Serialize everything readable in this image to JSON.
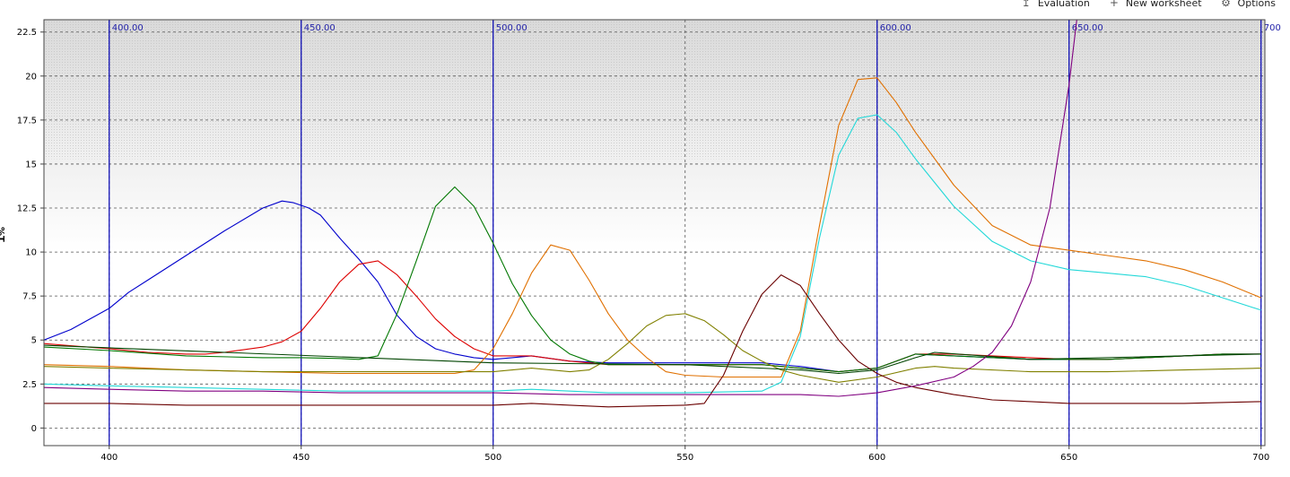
{
  "toolbar": {
    "items": [
      {
        "label": "Evaluation",
        "icon": "evaluation-icon"
      },
      {
        "label": "New worksheet",
        "icon": "plus-icon"
      },
      {
        "label": "Options",
        "icon": "gear-icon"
      }
    ]
  },
  "chart_data": {
    "type": "line",
    "title": "",
    "xlabel": "",
    "ylabel": "%T",
    "xlim": [
      383,
      701
    ],
    "ylim": [
      -1,
      23.2
    ],
    "grid": true,
    "xticks": [
      "400",
      "450",
      "500",
      "550",
      "600",
      "650",
      "700"
    ],
    "yticks": [
      "0",
      "2.5",
      "5",
      "7.5",
      "10",
      "12.5",
      "15",
      "17.5",
      "20",
      "22.5"
    ],
    "markers": [
      {
        "x": 400,
        "label": "400.00"
      },
      {
        "x": 450,
        "label": "450.00"
      },
      {
        "x": 500,
        "label": "500.00"
      },
      {
        "x": 600,
        "label": "600.00"
      },
      {
        "x": 650,
        "label": "650.00"
      },
      {
        "x": 700,
        "label": "700"
      }
    ],
    "colors": {
      "plot_background": "#ffffff",
      "noise_band": "#d6d6d6",
      "grid": "#555555",
      "marker": "#0000b4"
    },
    "series": [
      {
        "color": "#0000cc",
        "x": [
          383,
          390,
          400,
          405,
          410,
          420,
          430,
          440,
          445,
          448,
          452,
          455,
          460,
          465,
          470,
          475,
          480,
          485,
          490,
          495,
          500,
          505,
          510,
          520,
          530,
          550,
          570,
          580,
          590,
          600,
          610,
          620,
          640,
          650,
          660,
          670,
          680,
          690,
          700
        ],
        "y": [
          5,
          5.6,
          6.8,
          7.7,
          8.4,
          9.8,
          11.2,
          12.5,
          12.9,
          12.8,
          12.5,
          12.1,
          10.8,
          9.6,
          8.3,
          6.4,
          5.2,
          4.5,
          4.2,
          4,
          3.9,
          4,
          4.1,
          3.8,
          3.7,
          3.7,
          3.7,
          3.5,
          3.2,
          3.4,
          4.2,
          4.1,
          3.9,
          3.9,
          3.9,
          4,
          4.1,
          4.2,
          4.2
        ]
      },
      {
        "color": "#dd0000",
        "x": [
          383,
          400,
          410,
          420,
          425,
          430,
          440,
          445,
          450,
          455,
          460,
          465,
          470,
          475,
          480,
          485,
          490,
          495,
          500,
          505,
          510,
          520,
          530,
          550,
          570,
          580,
          590,
          600,
          610,
          620,
          640,
          650,
          660,
          670,
          680,
          690,
          700
        ],
        "y": [
          4.8,
          4.5,
          4.3,
          4.2,
          4.2,
          4.3,
          4.6,
          4.9,
          5.5,
          6.8,
          8.3,
          9.3,
          9.5,
          8.7,
          7.5,
          6.2,
          5.2,
          4.5,
          4.1,
          4.1,
          4.1,
          3.8,
          3.6,
          3.6,
          3.6,
          3.4,
          3.2,
          3.4,
          4.2,
          4.2,
          4,
          3.9,
          3.9,
          4,
          4.1,
          4.2,
          4.2
        ]
      },
      {
        "color": "#007700",
        "x": [
          383,
          400,
          420,
          440,
          450,
          460,
          465,
          470,
          475,
          480,
          485,
          490,
          495,
          500,
          505,
          510,
          515,
          520,
          525,
          530,
          550,
          570,
          580,
          590,
          600,
          610,
          620,
          640,
          650,
          660,
          670,
          680,
          690,
          700
        ],
        "y": [
          4.6,
          4.4,
          4.1,
          4,
          4,
          3.95,
          3.9,
          4.1,
          6.5,
          9.5,
          12.6,
          13.7,
          12.6,
          10.5,
          8.2,
          6.4,
          5,
          4.2,
          3.8,
          3.6,
          3.6,
          3.6,
          3.4,
          3.2,
          3.4,
          4.2,
          4.1,
          3.9,
          3.9,
          3.9,
          4,
          4.1,
          4.2,
          4.2
        ]
      },
      {
        "color": "#e07000",
        "x": [
          383,
          400,
          420,
          440,
          460,
          480,
          490,
          495,
          500,
          505,
          510,
          515,
          520,
          525,
          530,
          535,
          540,
          545,
          550,
          560,
          570,
          575,
          580,
          585,
          590,
          595,
          600,
          605,
          610,
          620,
          630,
          640,
          650,
          660,
          670,
          680,
          690,
          700
        ],
        "y": [
          3.6,
          3.5,
          3.3,
          3.2,
          3.1,
          3.1,
          3.1,
          3.3,
          4.5,
          6.5,
          8.8,
          10.4,
          10.1,
          8.4,
          6.5,
          5,
          4,
          3.2,
          3,
          2.9,
          2.9,
          2.9,
          5.5,
          11.5,
          17.2,
          19.8,
          19.9,
          18.5,
          16.8,
          13.8,
          11.5,
          10.4,
          10.1,
          9.8,
          9.5,
          9,
          8.3,
          7.4
        ]
      },
      {
        "color": "#22d8d8",
        "x": [
          383,
          400,
          420,
          440,
          460,
          480,
          500,
          510,
          520,
          530,
          550,
          570,
          575,
          580,
          585,
          590,
          595,
          600,
          605,
          610,
          620,
          630,
          640,
          650,
          660,
          670,
          680,
          690,
          700
        ],
        "y": [
          2.5,
          2.4,
          2.3,
          2.2,
          2.1,
          2.1,
          2.1,
          2.2,
          2.1,
          2.0,
          2.0,
          2.1,
          2.6,
          5.2,
          10.8,
          15.5,
          17.6,
          17.8,
          16.8,
          15.3,
          12.6,
          10.6,
          9.5,
          9,
          8.8,
          8.6,
          8.1,
          7.4,
          6.7
        ]
      },
      {
        "color": "#808000",
        "x": [
          383,
          400,
          420,
          440,
          460,
          480,
          500,
          510,
          520,
          525,
          530,
          535,
          540,
          545,
          550,
          555,
          560,
          565,
          570,
          575,
          580,
          590,
          600,
          610,
          615,
          620,
          640,
          660,
          680,
          700
        ],
        "y": [
          3.5,
          3.4,
          3.3,
          3.2,
          3.2,
          3.2,
          3.2,
          3.4,
          3.2,
          3.3,
          3.9,
          4.8,
          5.8,
          6.4,
          6.5,
          6.1,
          5.3,
          4.4,
          3.8,
          3.3,
          3,
          2.6,
          2.9,
          3.4,
          3.5,
          3.4,
          3.2,
          3.2,
          3.3,
          3.4
        ]
      },
      {
        "color": "#6a0000",
        "x": [
          383,
          400,
          420,
          440,
          460,
          480,
          500,
          510,
          520,
          530,
          540,
          550,
          555,
          560,
          565,
          570,
          575,
          580,
          585,
          590,
          595,
          600,
          605,
          610,
          620,
          630,
          640,
          650,
          660,
          680,
          700
        ],
        "y": [
          1.4,
          1.4,
          1.3,
          1.3,
          1.3,
          1.3,
          1.3,
          1.4,
          1.3,
          1.2,
          1.25,
          1.3,
          1.4,
          3,
          5.5,
          7.6,
          8.7,
          8.1,
          6.5,
          5,
          3.8,
          3.1,
          2.6,
          2.3,
          1.9,
          1.6,
          1.5,
          1.4,
          1.4,
          1.4,
          1.5
        ]
      },
      {
        "color": "#800080",
        "x": [
          383,
          400,
          420,
          440,
          460,
          480,
          500,
          520,
          540,
          560,
          570,
          580,
          590,
          600,
          610,
          620,
          625,
          630,
          635,
          640,
          645,
          650,
          652
        ],
        "y": [
          2.3,
          2.2,
          2.1,
          2.1,
          2.0,
          2.0,
          2.0,
          1.9,
          1.9,
          1.9,
          1.9,
          1.9,
          1.8,
          2.0,
          2.4,
          2.9,
          3.5,
          4.3,
          5.8,
          8.3,
          12.5,
          19.5,
          23.2
        ]
      },
      {
        "color": "#004400",
        "x": [
          383,
          500,
          550,
          580,
          590,
          600,
          610,
          615,
          640,
          700
        ],
        "y": [
          4.7,
          3.7,
          3.6,
          3.3,
          3.1,
          3.3,
          4.0,
          4.3,
          3.9,
          4.2
        ]
      }
    ]
  }
}
